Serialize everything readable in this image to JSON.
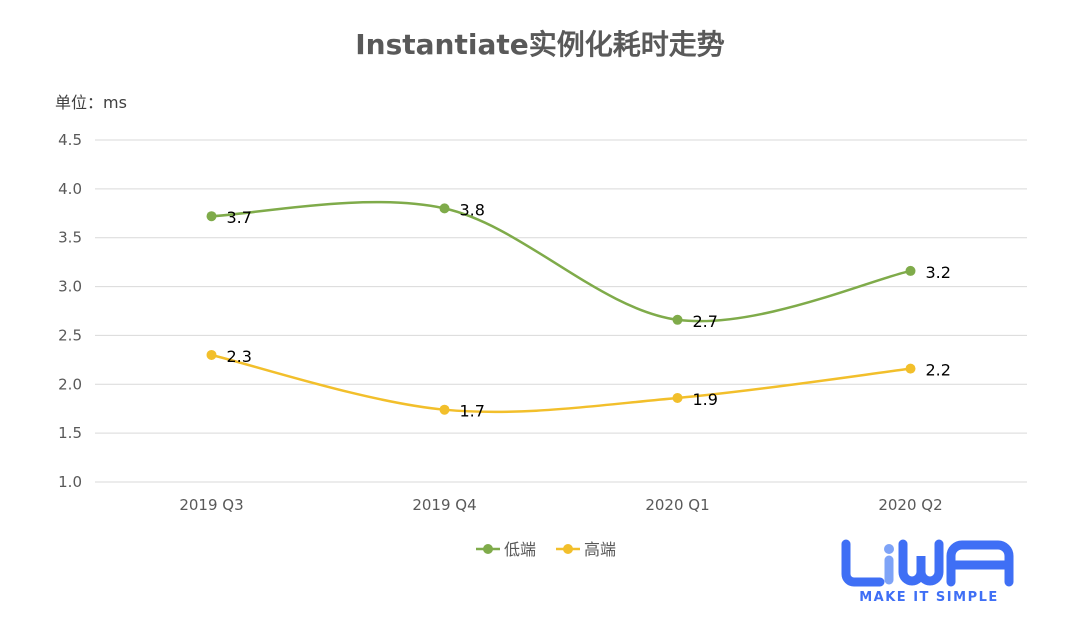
{
  "chart_data": {
    "type": "line",
    "title": "Instantiate实例化耗时走势",
    "unit_label": "单位：ms",
    "categories": [
      "2019 Q3",
      "2019 Q4",
      "2020 Q1",
      "2020 Q2"
    ],
    "ylim": [
      1.0,
      4.5
    ],
    "yticks": [
      "1.0",
      "1.5",
      "2.0",
      "2.5",
      "3.0",
      "3.5",
      "4.0",
      "4.5"
    ],
    "grid": true,
    "smooth": true,
    "legend_position": "bottom",
    "series": [
      {
        "name": "低端",
        "color": "#7fab4a",
        "values": [
          3.72,
          3.8,
          2.66,
          3.16
        ],
        "labels": [
          "3.7",
          "3.8",
          "2.7",
          "3.2"
        ]
      },
      {
        "name": "高端",
        "color": "#f2bf2b",
        "values": [
          2.3,
          1.74,
          1.86,
          2.16
        ],
        "labels": [
          "2.3",
          "1.7",
          "1.9",
          "2.2"
        ]
      }
    ]
  },
  "logo": {
    "text": "LiWA",
    "tagline": "MAKE IT SIMPLE",
    "color": "#3f6ff5"
  }
}
